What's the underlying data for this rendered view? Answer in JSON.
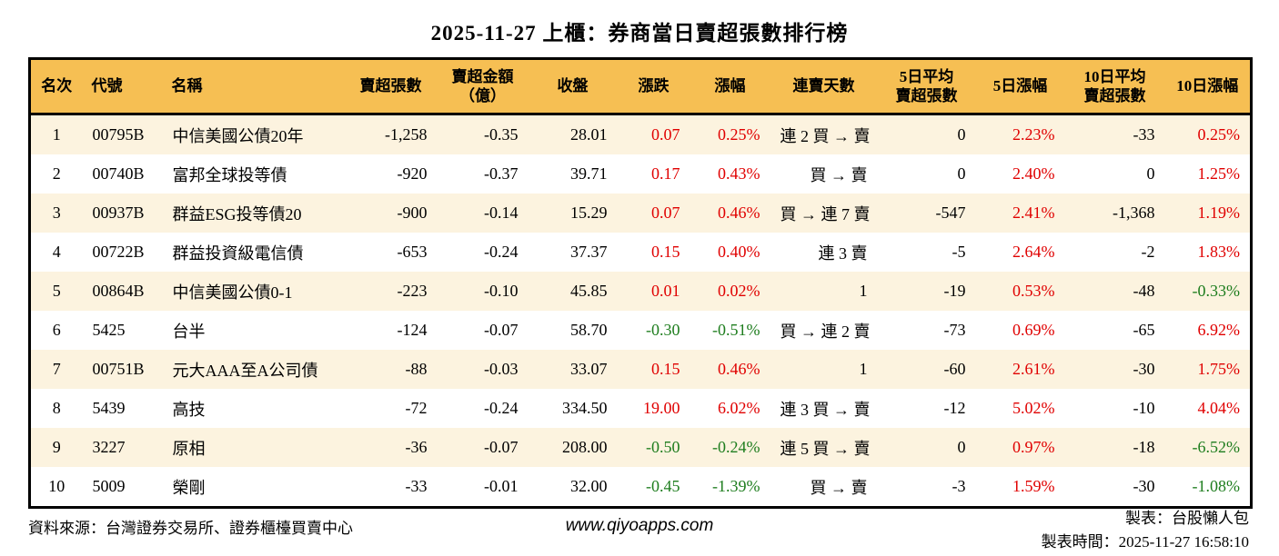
{
  "title": "2025-11-27 上櫃：券商當日賣超張數排行榜",
  "colors": {
    "header_bg": "#f6bf53",
    "stripe_bg": "#fcf3df",
    "row_bg": "#ffffff",
    "red": "#e00000",
    "green": "#1e7d1e",
    "border_black": "#000000"
  },
  "table": {
    "columns": [
      {
        "id": "rank",
        "lines": [
          "名次"
        ],
        "align": "center"
      },
      {
        "id": "code",
        "lines": [
          "代號"
        ],
        "align": "left"
      },
      {
        "id": "name",
        "lines": [
          "名稱"
        ],
        "align": "left"
      },
      {
        "id": "sell-volume",
        "lines": [
          "賣超張數"
        ],
        "align": "right"
      },
      {
        "id": "sell-amount",
        "lines": [
          "賣超金額",
          "（億）"
        ],
        "align": "right"
      },
      {
        "id": "close",
        "lines": [
          "收盤"
        ],
        "align": "right"
      },
      {
        "id": "change",
        "lines": [
          "漲跌"
        ],
        "align": "right"
      },
      {
        "id": "change-pct",
        "lines": [
          "漲幅"
        ],
        "align": "right"
      },
      {
        "id": "sell-streak",
        "lines": [
          "連賣天數"
        ],
        "align": "right"
      },
      {
        "id": "avg5-sell",
        "lines": [
          "5日平均",
          "賣超張數"
        ],
        "align": "right"
      },
      {
        "id": "pct5",
        "lines": [
          "5日漲幅"
        ],
        "align": "right"
      },
      {
        "id": "avg10-sell",
        "lines": [
          "10日平均",
          "賣超張數"
        ],
        "align": "right"
      },
      {
        "id": "pct10",
        "lines": [
          "10日漲幅"
        ],
        "align": "right"
      }
    ],
    "rows": [
      [
        {
          "text": "1"
        },
        {
          "text": "00795B"
        },
        {
          "text": "中信美國公債20年"
        },
        {
          "text": "-1,258"
        },
        {
          "text": "-0.35"
        },
        {
          "text": "28.01"
        },
        {
          "text": "0.07",
          "color": "red"
        },
        {
          "text": "0.25%",
          "color": "red"
        },
        {
          "text": "連 2 買 → 賣"
        },
        {
          "text": "0"
        },
        {
          "text": "2.23%",
          "color": "red"
        },
        {
          "text": "-33"
        },
        {
          "text": "0.25%",
          "color": "red"
        }
      ],
      [
        {
          "text": "2"
        },
        {
          "text": "00740B"
        },
        {
          "text": "富邦全球投等債"
        },
        {
          "text": "-920"
        },
        {
          "text": "-0.37"
        },
        {
          "text": "39.71"
        },
        {
          "text": "0.17",
          "color": "red"
        },
        {
          "text": "0.43%",
          "color": "red"
        },
        {
          "text": "買 → 賣"
        },
        {
          "text": "0"
        },
        {
          "text": "2.40%",
          "color": "red"
        },
        {
          "text": "0"
        },
        {
          "text": "1.25%",
          "color": "red"
        }
      ],
      [
        {
          "text": "3"
        },
        {
          "text": "00937B"
        },
        {
          "text": "群益ESG投等債20"
        },
        {
          "text": "-900"
        },
        {
          "text": "-0.14"
        },
        {
          "text": "15.29"
        },
        {
          "text": "0.07",
          "color": "red"
        },
        {
          "text": "0.46%",
          "color": "red"
        },
        {
          "text": "買 → 連 7 賣"
        },
        {
          "text": "-547"
        },
        {
          "text": "2.41%",
          "color": "red"
        },
        {
          "text": "-1,368"
        },
        {
          "text": "1.19%",
          "color": "red"
        }
      ],
      [
        {
          "text": "4"
        },
        {
          "text": "00722B"
        },
        {
          "text": "群益投資級電信債"
        },
        {
          "text": "-653"
        },
        {
          "text": "-0.24"
        },
        {
          "text": "37.37"
        },
        {
          "text": "0.15",
          "color": "red"
        },
        {
          "text": "0.40%",
          "color": "red"
        },
        {
          "text": "連 3 賣"
        },
        {
          "text": "-5"
        },
        {
          "text": "2.64%",
          "color": "red"
        },
        {
          "text": "-2"
        },
        {
          "text": "1.83%",
          "color": "red"
        }
      ],
      [
        {
          "text": "5"
        },
        {
          "text": "00864B"
        },
        {
          "text": "中信美國公債0-1"
        },
        {
          "text": "-223"
        },
        {
          "text": "-0.10"
        },
        {
          "text": "45.85"
        },
        {
          "text": "0.01",
          "color": "red"
        },
        {
          "text": "0.02%",
          "color": "red"
        },
        {
          "text": "1"
        },
        {
          "text": "-19"
        },
        {
          "text": "0.53%",
          "color": "red"
        },
        {
          "text": "-48"
        },
        {
          "text": "-0.33%",
          "color": "green"
        }
      ],
      [
        {
          "text": "6"
        },
        {
          "text": "5425"
        },
        {
          "text": "台半"
        },
        {
          "text": "-124"
        },
        {
          "text": "-0.07"
        },
        {
          "text": "58.70"
        },
        {
          "text": "-0.30",
          "color": "green"
        },
        {
          "text": "-0.51%",
          "color": "green"
        },
        {
          "text": "買 → 連 2 賣"
        },
        {
          "text": "-73"
        },
        {
          "text": "0.69%",
          "color": "red"
        },
        {
          "text": "-65"
        },
        {
          "text": "6.92%",
          "color": "red"
        }
      ],
      [
        {
          "text": "7"
        },
        {
          "text": "00751B"
        },
        {
          "text": "元大AAA至A公司債"
        },
        {
          "text": "-88"
        },
        {
          "text": "-0.03"
        },
        {
          "text": "33.07"
        },
        {
          "text": "0.15",
          "color": "red"
        },
        {
          "text": "0.46%",
          "color": "red"
        },
        {
          "text": "1"
        },
        {
          "text": "-60"
        },
        {
          "text": "2.61%",
          "color": "red"
        },
        {
          "text": "-30"
        },
        {
          "text": "1.75%",
          "color": "red"
        }
      ],
      [
        {
          "text": "8"
        },
        {
          "text": "5439"
        },
        {
          "text": "高技"
        },
        {
          "text": "-72"
        },
        {
          "text": "-0.24"
        },
        {
          "text": "334.50"
        },
        {
          "text": "19.00",
          "color": "red"
        },
        {
          "text": "6.02%",
          "color": "red"
        },
        {
          "text": "連 3 買 → 賣"
        },
        {
          "text": "-12"
        },
        {
          "text": "5.02%",
          "color": "red"
        },
        {
          "text": "-10"
        },
        {
          "text": "4.04%",
          "color": "red"
        }
      ],
      [
        {
          "text": "9"
        },
        {
          "text": "3227"
        },
        {
          "text": "原相"
        },
        {
          "text": "-36"
        },
        {
          "text": "-0.07"
        },
        {
          "text": "208.00"
        },
        {
          "text": "-0.50",
          "color": "green"
        },
        {
          "text": "-0.24%",
          "color": "green"
        },
        {
          "text": "連 5 買 → 賣"
        },
        {
          "text": "0"
        },
        {
          "text": "0.97%",
          "color": "red"
        },
        {
          "text": "-18"
        },
        {
          "text": "-6.52%",
          "color": "green"
        }
      ],
      [
        {
          "text": "10"
        },
        {
          "text": "5009"
        },
        {
          "text": "榮剛"
        },
        {
          "text": "-33"
        },
        {
          "text": "-0.01"
        },
        {
          "text": "32.00"
        },
        {
          "text": "-0.45",
          "color": "green"
        },
        {
          "text": "-1.39%",
          "color": "green"
        },
        {
          "text": "買 → 賣"
        },
        {
          "text": "-3"
        },
        {
          "text": "1.59%",
          "color": "red"
        },
        {
          "text": "-30"
        },
        {
          "text": "-1.08%",
          "color": "green"
        }
      ]
    ]
  },
  "footer": {
    "source": "資料來源：台灣證券交易所、證券櫃檯買賣中心",
    "website": "www.qiyoapps.com",
    "maker": "製表：台股懶人包",
    "made_time": "製表時間：2025-11-27 16:58:10"
  },
  "chart_data": {
    "type": "table",
    "title": "2025-11-27 上櫃：券商當日賣超張數排行榜",
    "columns": [
      "名次",
      "代號",
      "名稱",
      "賣超張數",
      "賣超金額（億）",
      "收盤",
      "漲跌",
      "漲幅",
      "連賣天數",
      "5日平均賣超張數",
      "5日漲幅",
      "10日平均賣超張數",
      "10日漲幅"
    ],
    "rows": [
      [
        "1",
        "00795B",
        "中信美國公債20年",
        "-1,258",
        "-0.35",
        "28.01",
        "0.07",
        "0.25%",
        "連 2 買 → 賣",
        "0",
        "2.23%",
        "-33",
        "0.25%"
      ],
      [
        "2",
        "00740B",
        "富邦全球投等債",
        "-920",
        "-0.37",
        "39.71",
        "0.17",
        "0.43%",
        "買 → 賣",
        "0",
        "2.40%",
        "0",
        "1.25%"
      ],
      [
        "3",
        "00937B",
        "群益ESG投等債20",
        "-900",
        "-0.14",
        "15.29",
        "0.07",
        "0.46%",
        "買 → 連 7 賣",
        "-547",
        "2.41%",
        "-1,368",
        "1.19%"
      ],
      [
        "4",
        "00722B",
        "群益投資級電信債",
        "-653",
        "-0.24",
        "37.37",
        "0.15",
        "0.40%",
        "連 3 賣",
        "-5",
        "2.64%",
        "-2",
        "1.83%"
      ],
      [
        "5",
        "00864B",
        "中信美國公債0-1",
        "-223",
        "-0.10",
        "45.85",
        "0.01",
        "0.02%",
        "1",
        "-19",
        "0.53%",
        "-48",
        "-0.33%"
      ],
      [
        "6",
        "5425",
        "台半",
        "-124",
        "-0.07",
        "58.70",
        "-0.30",
        "-0.51%",
        "買 → 連 2 賣",
        "-73",
        "0.69%",
        "-65",
        "6.92%"
      ],
      [
        "7",
        "00751B",
        "元大AAA至A公司債",
        "-88",
        "-0.03",
        "33.07",
        "0.15",
        "0.46%",
        "1",
        "-60",
        "2.61%",
        "-30",
        "1.75%"
      ],
      [
        "8",
        "5439",
        "高技",
        "-72",
        "-0.24",
        "334.50",
        "19.00",
        "6.02%",
        "連 3 買 → 賣",
        "-12",
        "5.02%",
        "-10",
        "4.04%"
      ],
      [
        "9",
        "3227",
        "原相",
        "-36",
        "-0.07",
        "208.00",
        "-0.50",
        "-0.24%",
        "連 5 買 → 賣",
        "0",
        "0.97%",
        "-18",
        "-6.52%"
      ],
      [
        "10",
        "5009",
        "榮剛",
        "-33",
        "-0.01",
        "32.00",
        "-0.45",
        "-1.39%",
        "買 → 賣",
        "-3",
        "1.59%",
        "-30",
        "-1.08%"
      ]
    ]
  }
}
